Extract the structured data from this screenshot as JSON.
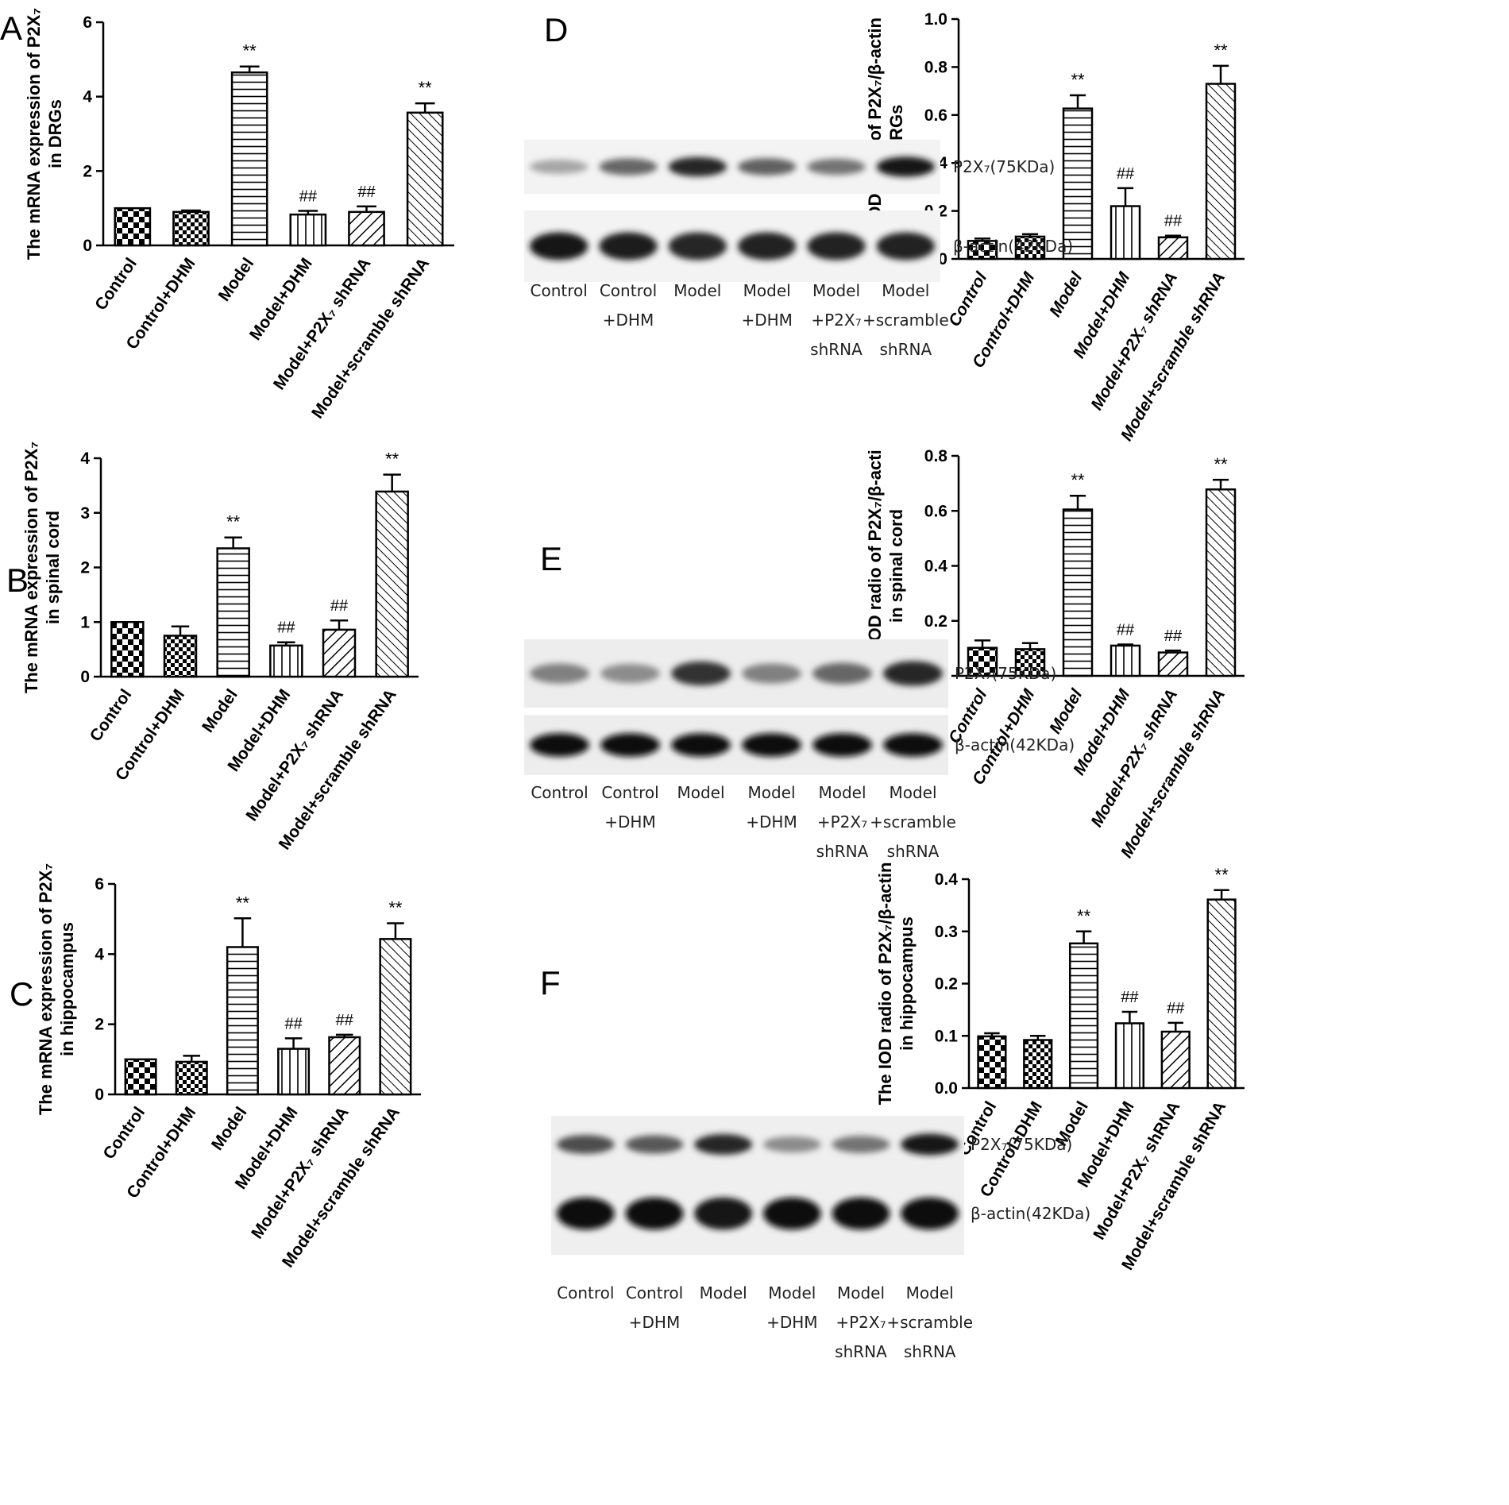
{
  "panel_letters": [
    "A",
    "B",
    "C",
    "D",
    "E",
    "F"
  ],
  "chart_data": [
    {
      "type": "bar",
      "panel": "A",
      "ylabel_lines": [
        "The mRNA expression of P2X₇",
        "in DRGs"
      ],
      "categories": [
        "Control",
        "Control+DHM",
        "Model",
        "Model+DHM",
        "Model+P2X₇ shRNA",
        "Model+scramble shRNA"
      ],
      "values": [
        1.0,
        0.9,
        4.65,
        0.83,
        0.9,
        3.57
      ],
      "errors": [
        0,
        0.04,
        0.16,
        0.1,
        0.15,
        0.25
      ],
      "annotations": [
        "",
        "",
        "**",
        "##",
        "##",
        "**"
      ],
      "ylim": [
        0,
        6
      ],
      "yticks": [
        0,
        2,
        4,
        6
      ],
      "tick_decimals": 0,
      "italic_categories": false
    },
    {
      "type": "bar",
      "panel": "B",
      "ylabel_lines": [
        "The mRNA expression of P2X₇",
        "in spinal cord"
      ],
      "categories": [
        "Control",
        "Control+DHM",
        "Model",
        "Model+DHM",
        "Model+P2X₇ shRNA",
        "Model+scramble shRNA"
      ],
      "values": [
        1.0,
        0.75,
        2.35,
        0.57,
        0.86,
        3.39
      ],
      "errors": [
        0,
        0.17,
        0.2,
        0.06,
        0.17,
        0.31
      ],
      "annotations": [
        "",
        "",
        "**",
        "##",
        "##",
        "**"
      ],
      "ylim": [
        0,
        4
      ],
      "yticks": [
        0,
        1,
        2,
        3,
        4
      ],
      "tick_decimals": 0,
      "italic_categories": false
    },
    {
      "type": "bar",
      "panel": "C",
      "ylabel_lines": [
        "The mRNA expression of P2X₇",
        "in hippocampus"
      ],
      "categories": [
        "Control",
        "Control+DHM",
        "Model",
        "Model+DHM",
        "Model+P2X₇ shRNA",
        "Model+scramble shRNA"
      ],
      "values": [
        1.0,
        0.93,
        4.2,
        1.3,
        1.63,
        4.43
      ],
      "errors": [
        0,
        0.17,
        0.82,
        0.3,
        0.07,
        0.45
      ],
      "annotations": [
        "",
        "",
        "**",
        "##",
        "##",
        "**"
      ],
      "ylim": [
        0,
        6
      ],
      "yticks": [
        0,
        2,
        4,
        6
      ],
      "tick_decimals": 0,
      "italic_categories": false
    },
    {
      "type": "bar",
      "panel": "D",
      "ylabel_lines": [
        "The IOD radio of P2X₇/β-actin",
        "in DRGs"
      ],
      "categories": [
        "Control",
        "Control+DHM",
        "Model",
        "Model+DHM",
        "Model+P2X₇ shRNA",
        "Model+scramble shRNA"
      ],
      "values": [
        0.075,
        0.093,
        0.627,
        0.22,
        0.09,
        0.73
      ],
      "errors": [
        0.01,
        0.01,
        0.055,
        0.075,
        0.007,
        0.075
      ],
      "annotations": [
        "",
        "",
        "**",
        "##",
        "##",
        "**"
      ],
      "ylim": [
        0,
        1.0
      ],
      "yticks": [
        0.0,
        0.2,
        0.4,
        0.6,
        0.8,
        1.0
      ],
      "tick_decimals": 1,
      "italic_categories": true
    },
    {
      "type": "bar",
      "panel": "E",
      "ylabel_lines": [
        "The IOD radio of P2X₇/β-acti",
        "in spinal cord"
      ],
      "categories": [
        "Control",
        "Control+DHM",
        "Model",
        "Model+DHM",
        "Model+P2X₇ shRNA",
        "Model+scramble shRNA"
      ],
      "values": [
        0.102,
        0.097,
        0.605,
        0.11,
        0.085,
        0.678
      ],
      "errors": [
        0.027,
        0.022,
        0.05,
        0.004,
        0.007,
        0.035
      ],
      "annotations": [
        "",
        "",
        "**",
        "##",
        "##",
        "**"
      ],
      "ylim": [
        0,
        0.8
      ],
      "yticks": [
        0.0,
        0.2,
        0.4,
        0.6,
        0.8
      ],
      "tick_decimals": 1,
      "italic_categories": true
    },
    {
      "type": "bar",
      "panel": "F",
      "ylabel_lines": [
        "The IOD radio of P2X₇/β-actin",
        "in hippocampus"
      ],
      "categories": [
        "Control",
        "Control+DHM",
        "Model",
        "Model+DHM",
        "Model+P2X₇ shRNA",
        "Model+scramble shRNA"
      ],
      "values": [
        0.099,
        0.092,
        0.277,
        0.124,
        0.108,
        0.361
      ],
      "errors": [
        0.006,
        0.008,
        0.023,
        0.022,
        0.017,
        0.018
      ],
      "annotations": [
        "",
        "",
        "**",
        "##",
        "##",
        "**"
      ],
      "ylim": [
        0,
        0.4
      ],
      "yticks": [
        0.0,
        0.1,
        0.2,
        0.3,
        0.4
      ],
      "tick_decimals": 1,
      "italic_categories": false
    }
  ],
  "blots": [
    {
      "panel": "D",
      "band_labels": [
        "P2X₇(75KDa)",
        "β-actin(42KDa)"
      ],
      "lane_labels": [
        [
          "Control"
        ],
        [
          "Control",
          "+DHM"
        ],
        [
          "Model"
        ],
        [
          "Model",
          "+DHM"
        ],
        [
          "Model",
          "+P2X₇",
          "shRNA"
        ],
        [
          "Model",
          "+scramble",
          "shRNA"
        ]
      ],
      "p2x7_intensity": [
        0.35,
        0.6,
        0.85,
        0.62,
        0.55,
        0.9
      ],
      "actin_intensity": [
        0.9,
        0.88,
        0.85,
        0.87,
        0.87,
        0.86
      ]
    },
    {
      "panel": "E",
      "band_labels": [
        "P2X₇(75KDa)",
        "β-actin(42KDa)"
      ],
      "lane_labels": [
        [
          "Control"
        ],
        [
          "Control",
          "+DHM"
        ],
        [
          "Model"
        ],
        [
          "Model",
          "+DHM"
        ],
        [
          "Model",
          "+P2X₇",
          "shRNA"
        ],
        [
          "Model",
          "+scramble",
          "shRNA"
        ]
      ],
      "p2x7_intensity": [
        0.5,
        0.45,
        0.8,
        0.5,
        0.6,
        0.85
      ],
      "actin_intensity": [
        0.95,
        0.95,
        0.95,
        0.95,
        0.95,
        0.95
      ]
    },
    {
      "panel": "F",
      "band_labels": [
        "P2X₇(75KDa)",
        "β-actin(42KDa)"
      ],
      "lane_labels": [
        [
          "Control"
        ],
        [
          "Control",
          "+DHM"
        ],
        [
          "Model"
        ],
        [
          "Model",
          "+DHM"
        ],
        [
          "Model",
          "+P2X₇",
          "shRNA"
        ],
        [
          "Model",
          "+scramble",
          "shRNA"
        ]
      ],
      "p2x7_intensity": [
        0.7,
        0.65,
        0.85,
        0.45,
        0.55,
        0.92
      ],
      "actin_intensity": [
        0.95,
        0.95,
        0.93,
        0.95,
        0.95,
        0.95
      ]
    }
  ]
}
